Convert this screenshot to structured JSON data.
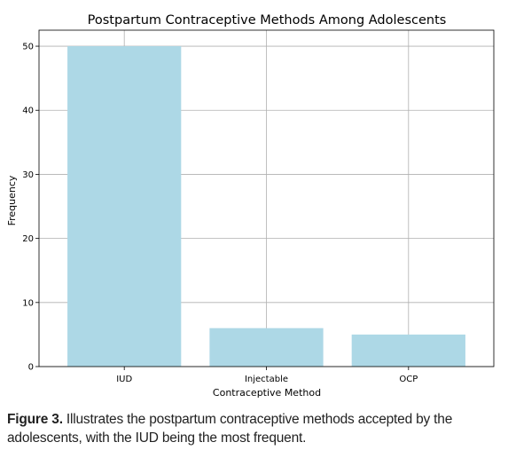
{
  "chart_data": {
    "type": "bar",
    "title": "Postpartum Contraceptive Methods Among Adolescents",
    "xlabel": "Contraceptive Method",
    "ylabel": "Frequency",
    "categories": [
      "IUD",
      "Injectable",
      "OCP"
    ],
    "values": [
      50,
      6,
      5
    ],
    "ylim": [
      0,
      52.5
    ],
    "yticks": [
      "0",
      "10",
      "20",
      "30",
      "40",
      "50"
    ],
    "grid": true,
    "bar_color": "#add8e6",
    "grid_color": "#b0b0b0",
    "axis_color": "#000000"
  },
  "caption": {
    "label": "Figure 3.",
    "text": " Illustrates the postpartum contraceptive methods accepted by the adolescents, with the IUD being the most frequent."
  }
}
